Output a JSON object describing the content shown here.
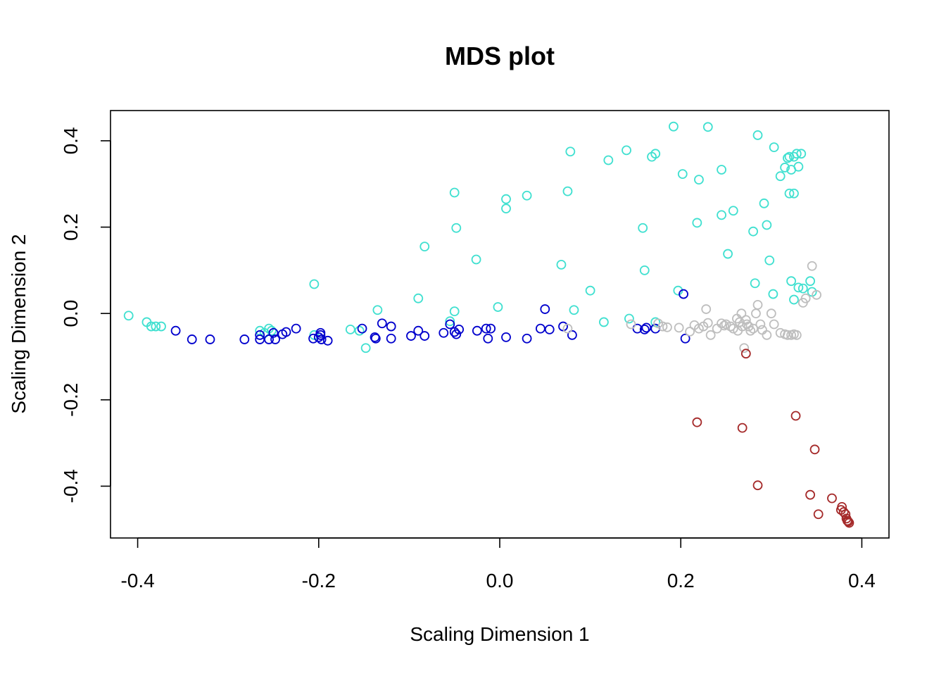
{
  "chart_data": {
    "type": "scatter",
    "title": "MDS plot",
    "xlabel": "Scaling Dimension 1",
    "ylabel": "Scaling Dimension 2",
    "xlim": [
      -0.43,
      0.43
    ],
    "ylim": [
      -0.52,
      0.47
    ],
    "x_ticks": [
      -0.4,
      -0.2,
      0.0,
      0.2,
      0.4
    ],
    "x_tick_labels": [
      "-0.4",
      "-0.2",
      "0.0",
      "0.2",
      "0.4"
    ],
    "y_ticks": [
      -0.4,
      -0.2,
      0.0,
      0.2,
      0.4
    ],
    "y_tick_labels": [
      "-0.4",
      "-0.2",
      "0.0",
      "0.2",
      "0.4"
    ],
    "grid": false,
    "legend": "none",
    "marker": "open-circle",
    "series": [
      {
        "color": "#40E0D0",
        "points": [
          [
            -0.41,
            -0.005
          ],
          [
            -0.39,
            -0.02
          ],
          [
            -0.385,
            -0.03
          ],
          [
            -0.38,
            -0.03
          ],
          [
            -0.374,
            -0.03
          ],
          [
            -0.265,
            -0.04
          ],
          [
            -0.26,
            -0.045
          ],
          [
            -0.255,
            -0.035
          ],
          [
            -0.252,
            -0.04
          ],
          [
            -0.205,
            0.068
          ],
          [
            -0.205,
            -0.05
          ],
          [
            -0.165,
            -0.037
          ],
          [
            -0.155,
            -0.04
          ],
          [
            -0.148,
            -0.08
          ],
          [
            -0.135,
            0.008
          ],
          [
            -0.09,
            0.035
          ],
          [
            -0.083,
            0.155
          ],
          [
            -0.055,
            -0.018
          ],
          [
            -0.05,
            0.005
          ],
          [
            -0.05,
            0.28
          ],
          [
            -0.048,
            0.198
          ],
          [
            -0.026,
            0.125
          ],
          [
            -0.002,
            0.015
          ],
          [
            0.007,
            0.265
          ],
          [
            0.007,
            0.243
          ],
          [
            0.03,
            0.273
          ],
          [
            0.068,
            0.113
          ],
          [
            0.075,
            0.283
          ],
          [
            0.078,
            0.375
          ],
          [
            0.082,
            0.008
          ],
          [
            0.1,
            0.053
          ],
          [
            0.115,
            -0.02
          ],
          [
            0.12,
            0.355
          ],
          [
            0.14,
            0.378
          ],
          [
            0.143,
            -0.012
          ],
          [
            0.158,
            0.198
          ],
          [
            0.16,
            0.1
          ],
          [
            0.168,
            0.363
          ],
          [
            0.172,
            0.37
          ],
          [
            0.172,
            -0.02
          ],
          [
            0.192,
            0.433
          ],
          [
            0.197,
            0.053
          ],
          [
            0.202,
            0.323
          ],
          [
            0.218,
            0.21
          ],
          [
            0.22,
            0.31
          ],
          [
            0.23,
            0.432
          ],
          [
            0.245,
            0.333
          ],
          [
            0.245,
            0.228
          ],
          [
            0.252,
            0.138
          ],
          [
            0.258,
            0.238
          ],
          [
            0.28,
            0.19
          ],
          [
            0.282,
            0.07
          ],
          [
            0.285,
            0.413
          ],
          [
            0.292,
            0.255
          ],
          [
            0.295,
            0.205
          ],
          [
            0.298,
            0.123
          ],
          [
            0.302,
            0.045
          ],
          [
            0.303,
            0.385
          ],
          [
            0.31,
            0.318
          ],
          [
            0.315,
            0.338
          ],
          [
            0.318,
            0.36
          ],
          [
            0.32,
            0.363
          ],
          [
            0.32,
            0.278
          ],
          [
            0.322,
            0.075
          ],
          [
            0.322,
            0.333
          ],
          [
            0.325,
            0.363
          ],
          [
            0.325,
            0.278
          ],
          [
            0.325,
            0.032
          ],
          [
            0.328,
            0.37
          ],
          [
            0.33,
            0.06
          ],
          [
            0.33,
            0.34
          ],
          [
            0.333,
            0.37
          ],
          [
            0.335,
            0.058
          ],
          [
            0.343,
            0.075
          ],
          [
            0.345,
            0.05
          ]
        ]
      },
      {
        "color": "#0000CD",
        "points": [
          [
            -0.358,
            -0.04
          ],
          [
            -0.34,
            -0.06
          ],
          [
            -0.32,
            -0.06
          ],
          [
            -0.282,
            -0.06
          ],
          [
            -0.265,
            -0.06
          ],
          [
            -0.265,
            -0.05
          ],
          [
            -0.255,
            -0.06
          ],
          [
            -0.25,
            -0.045
          ],
          [
            -0.248,
            -0.06
          ],
          [
            -0.24,
            -0.048
          ],
          [
            -0.236,
            -0.043
          ],
          [
            -0.225,
            -0.035
          ],
          [
            -0.206,
            -0.058
          ],
          [
            -0.2,
            -0.055
          ],
          [
            -0.198,
            -0.045
          ],
          [
            -0.198,
            -0.05
          ],
          [
            -0.197,
            -0.06
          ],
          [
            -0.19,
            -0.063
          ],
          [
            -0.152,
            -0.035
          ],
          [
            -0.138,
            -0.055
          ],
          [
            -0.137,
            -0.058
          ],
          [
            -0.13,
            -0.023
          ],
          [
            -0.12,
            -0.03
          ],
          [
            -0.12,
            -0.058
          ],
          [
            -0.098,
            -0.052
          ],
          [
            -0.09,
            -0.04
          ],
          [
            -0.083,
            -0.052
          ],
          [
            -0.062,
            -0.045
          ],
          [
            -0.055,
            -0.025
          ],
          [
            -0.05,
            -0.043
          ],
          [
            -0.048,
            -0.048
          ],
          [
            -0.045,
            -0.037
          ],
          [
            -0.025,
            -0.04
          ],
          [
            -0.015,
            -0.035
          ],
          [
            -0.013,
            -0.058
          ],
          [
            -0.01,
            -0.035
          ],
          [
            0.007,
            -0.055
          ],
          [
            0.03,
            -0.058
          ],
          [
            0.045,
            -0.035
          ],
          [
            0.05,
            0.01
          ],
          [
            0.055,
            -0.037
          ],
          [
            0.07,
            -0.03
          ],
          [
            0.08,
            -0.05
          ],
          [
            0.152,
            -0.035
          ],
          [
            0.16,
            -0.037
          ],
          [
            0.162,
            -0.033
          ],
          [
            0.172,
            -0.035
          ],
          [
            0.203,
            0.045
          ],
          [
            0.205,
            -0.058
          ]
        ]
      },
      {
        "color": "#BEBEBE",
        "points": [
          [
            0.075,
            -0.035
          ],
          [
            0.145,
            -0.025
          ],
          [
            0.175,
            -0.023
          ],
          [
            0.18,
            -0.03
          ],
          [
            0.185,
            -0.032
          ],
          [
            0.198,
            -0.033
          ],
          [
            0.21,
            -0.042
          ],
          [
            0.215,
            -0.027
          ],
          [
            0.22,
            -0.035
          ],
          [
            0.225,
            -0.03
          ],
          [
            0.228,
            0.01
          ],
          [
            0.23,
            -0.022
          ],
          [
            0.233,
            -0.05
          ],
          [
            0.24,
            -0.035
          ],
          [
            0.245,
            -0.023
          ],
          [
            0.248,
            -0.028
          ],
          [
            0.25,
            -0.025
          ],
          [
            0.255,
            -0.03
          ],
          [
            0.258,
            -0.035
          ],
          [
            0.262,
            -0.012
          ],
          [
            0.263,
            -0.04
          ],
          [
            0.265,
            -0.02
          ],
          [
            0.267,
            0.0
          ],
          [
            0.268,
            -0.03
          ],
          [
            0.27,
            -0.08
          ],
          [
            0.272,
            -0.015
          ],
          [
            0.273,
            -0.025
          ],
          [
            0.275,
            -0.03
          ],
          [
            0.277,
            -0.04
          ],
          [
            0.28,
            -0.035
          ],
          [
            0.283,
            0.0
          ],
          [
            0.285,
            0.02
          ],
          [
            0.288,
            -0.025
          ],
          [
            0.29,
            -0.038
          ],
          [
            0.295,
            -0.05
          ],
          [
            0.3,
            0.0
          ],
          [
            0.303,
            -0.025
          ],
          [
            0.31,
            -0.045
          ],
          [
            0.315,
            -0.048
          ],
          [
            0.318,
            -0.05
          ],
          [
            0.322,
            -0.05
          ],
          [
            0.325,
            -0.048
          ],
          [
            0.328,
            -0.05
          ],
          [
            0.335,
            0.025
          ],
          [
            0.338,
            0.035
          ],
          [
            0.345,
            0.11
          ],
          [
            0.35,
            0.043
          ]
        ]
      },
      {
        "color": "#A52A2A",
        "points": [
          [
            0.218,
            -0.252
          ],
          [
            0.268,
            -0.265
          ],
          [
            0.272,
            -0.093
          ],
          [
            0.285,
            -0.398
          ],
          [
            0.327,
            -0.237
          ],
          [
            0.343,
            -0.42
          ],
          [
            0.348,
            -0.315
          ],
          [
            0.352,
            -0.465
          ],
          [
            0.367,
            -0.428
          ],
          [
            0.377,
            -0.455
          ],
          [
            0.378,
            -0.448
          ],
          [
            0.38,
            -0.46
          ],
          [
            0.382,
            -0.465
          ],
          [
            0.383,
            -0.475
          ],
          [
            0.384,
            -0.48
          ],
          [
            0.385,
            -0.482
          ],
          [
            0.386,
            -0.485
          ]
        ]
      }
    ]
  }
}
